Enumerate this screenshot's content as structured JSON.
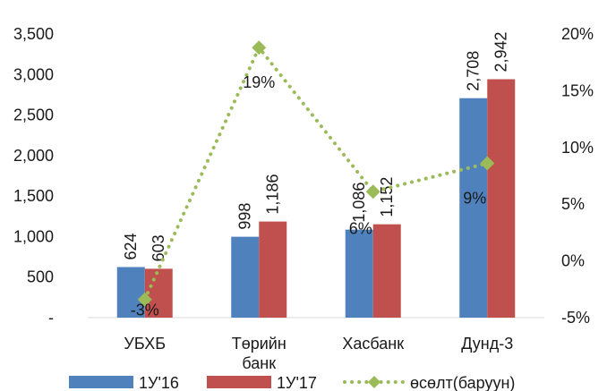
{
  "chart_data": {
    "type": "bar",
    "categories": [
      "УБХБ",
      "Төрийн банк",
      "Хасбанк",
      "Дунд-3"
    ],
    "series": [
      {
        "name": "1У'16",
        "values": [
          624,
          998,
          1086,
          2708
        ],
        "labels": [
          "624",
          "998",
          "1,086",
          "2,708"
        ],
        "color": "#4f81bd"
      },
      {
        "name": "1У'17",
        "values": [
          603,
          1186,
          1152,
          2942
        ],
        "labels": [
          "603",
          "1,186",
          "1,152",
          "2,942"
        ],
        "color": "#c0504d"
      }
    ],
    "line_series": {
      "name": "өсөлт(баруун)",
      "values": [
        -3.4,
        18.8,
        6.1,
        8.6
      ],
      "labels": [
        "-3%",
        "19%",
        "6%",
        "9%"
      ],
      "color": "#9bbb59",
      "axis": "right"
    },
    "y_left": {
      "min": 0,
      "max": 3500,
      "step": 500,
      "tick_labels": [
        "-",
        "500",
        "1,000",
        "1,500",
        "2,000",
        "2,500",
        "3,000",
        "3,500"
      ]
    },
    "y_right": {
      "min": -5,
      "max": 20,
      "step": 5,
      "tick_labels": [
        "-5%",
        "0%",
        "5%",
        "10%",
        "15%",
        "20%"
      ]
    },
    "legend_position": "bottom",
    "grid": false
  }
}
